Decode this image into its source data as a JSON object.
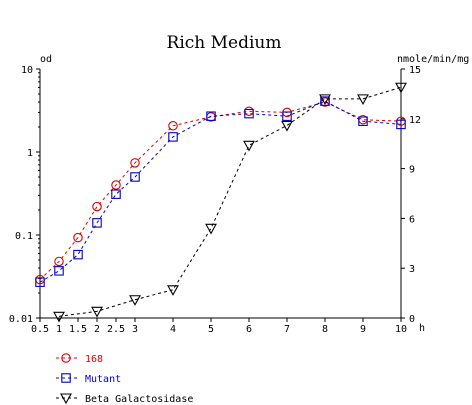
{
  "chart_data": {
    "type": "line",
    "title": "Rich Medium",
    "ylabel_left": "od",
    "ylabel_right": "nmole/min/mg",
    "xunit": "h",
    "x_ticks": [
      "0.5",
      "1",
      "1.5",
      "2",
      "2.5",
      "3",
      "4",
      "5",
      "6",
      "7",
      "8",
      "9",
      "10"
    ],
    "x_tick_values": [
      0.5,
      1,
      1.5,
      2,
      2.5,
      3,
      4,
      5,
      6,
      7,
      8,
      9,
      10
    ],
    "y_left": {
      "scale": "log",
      "lim": [
        0.01,
        10
      ],
      "ticks": [
        0.01,
        0.1,
        1,
        10
      ],
      "tick_labels": [
        "0.01",
        "0.1",
        "1",
        "10"
      ]
    },
    "y_right": {
      "scale": "linear",
      "lim": [
        0,
        15
      ],
      "ticks": [
        0,
        3,
        6,
        9,
        12,
        15
      ],
      "tick_labels": [
        "0",
        "3",
        "6",
        "9",
        "12",
        "15"
      ]
    },
    "legend_position": "bottom-left",
    "series": [
      {
        "name": "168",
        "axis": "left",
        "marker": "circle",
        "color": "#dd0000",
        "line_style": "dashed",
        "points": [
          [
            0.5,
            0.029
          ],
          [
            1,
            0.048
          ],
          [
            1.5,
            0.093
          ],
          [
            2,
            0.22
          ],
          [
            2.5,
            0.4
          ],
          [
            3,
            0.74
          ],
          [
            4,
            2.07
          ],
          [
            5,
            2.65
          ],
          [
            6,
            3.1
          ],
          [
            7,
            3.0
          ],
          [
            8,
            4.0
          ],
          [
            9,
            2.45
          ],
          [
            10,
            2.35
          ]
        ]
      },
      {
        "name": "Mutant",
        "axis": "left",
        "marker": "square",
        "color": "#0000cc",
        "line_style": "dashed",
        "points": [
          [
            0.5,
            0.027
          ],
          [
            1,
            0.037
          ],
          [
            1.5,
            0.058
          ],
          [
            2,
            0.14
          ],
          [
            2.5,
            0.31
          ],
          [
            3,
            0.5
          ],
          [
            4,
            1.52
          ],
          [
            5,
            2.7
          ],
          [
            6,
            2.9
          ],
          [
            7,
            2.7
          ],
          [
            8,
            4.1
          ],
          [
            9,
            2.35
          ],
          [
            10,
            2.15
          ]
        ]
      },
      {
        "name": "Beta Galactosidase",
        "axis": "right",
        "marker": "triangle-down",
        "color": "#000000",
        "line_style": "dashed",
        "points": [
          [
            1,
            0.1
          ],
          [
            2,
            0.4
          ],
          [
            3,
            1.1
          ],
          [
            4,
            1.7
          ],
          [
            5,
            5.4
          ],
          [
            6,
            10.4
          ],
          [
            7,
            11.6
          ],
          [
            8,
            13.2
          ],
          [
            9,
            13.2
          ],
          [
            10,
            13.9
          ]
        ]
      }
    ]
  }
}
